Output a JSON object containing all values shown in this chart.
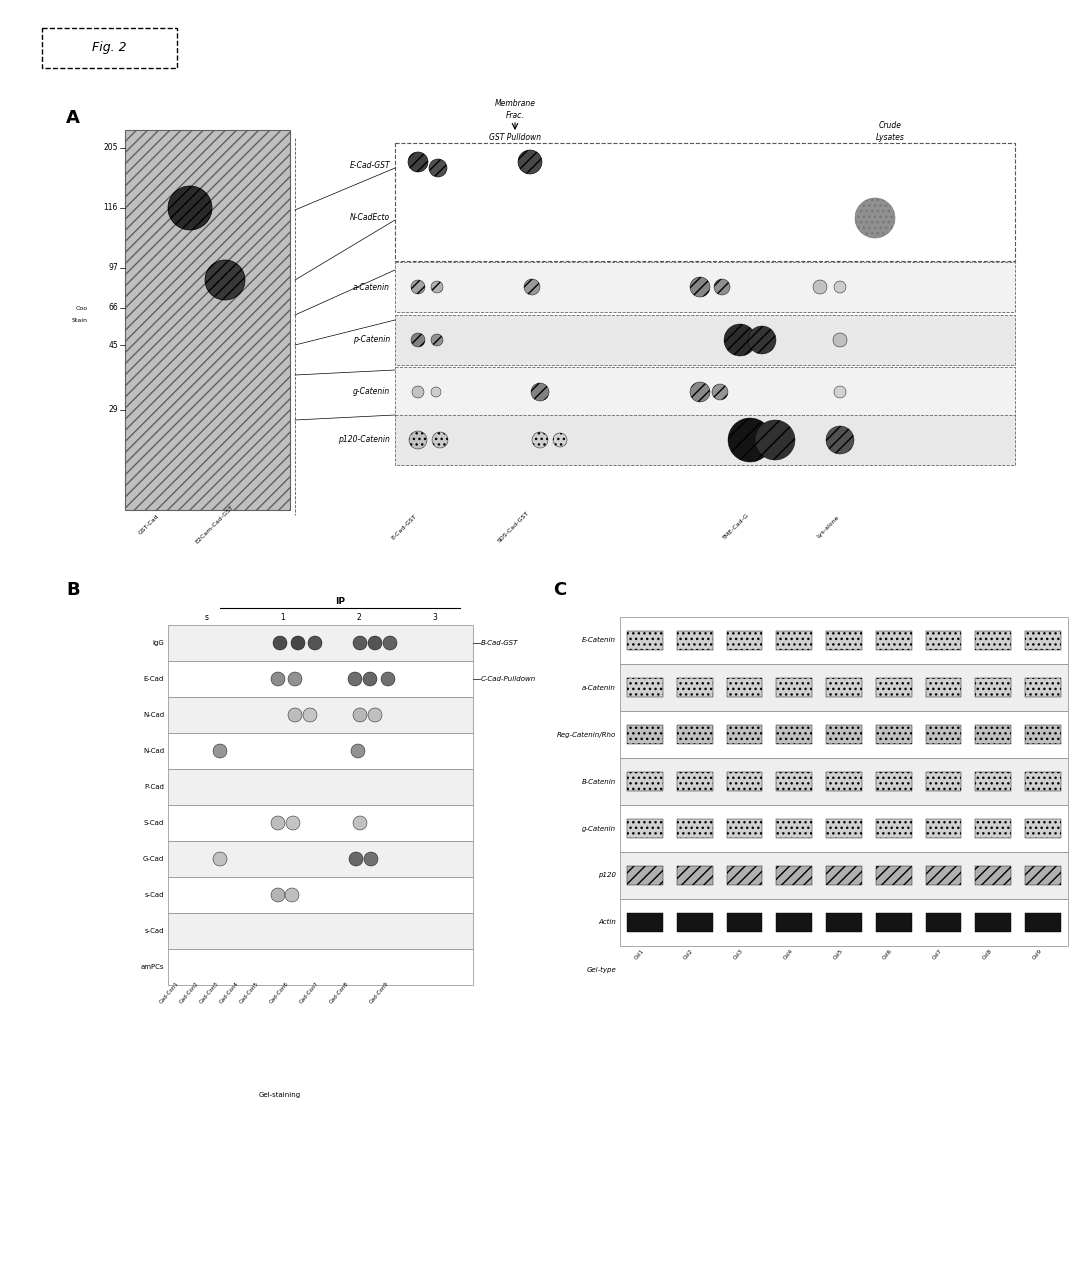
{
  "fig_label": "Fig. 2",
  "panel_A_label": "A",
  "panel_B_label": "B",
  "panel_C_label": "C",
  "background": "#ffffff",
  "gel_hatch": "///",
  "gel_fc": "#b0b0b0",
  "gel_ec": "#666666",
  "marker_labels": [
    "205",
    "116",
    "97",
    "66",
    "45",
    "29"
  ],
  "right_row_labels": [
    "E-Cad-GST",
    "N-CadEcto",
    "a-Catenin",
    "p-Catenin",
    "g-Catenin",
    "p120-Catenin"
  ],
  "right_col_labels": [
    "E-Cad-GST",
    "SDS-Cad-GST",
    "TME-Cad-G",
    "Lys-alone"
  ],
  "membrane_label1": "Membrane",
  "membrane_label2": "Frac.",
  "pulldown_label": "GST Pulldown",
  "crude_label1": "Crude",
  "crude_label2": "Lysates",
  "gel_xtick_labels": [
    "GST-Cad",
    "E2Cam-Cad-GST"
  ],
  "B_ip_label": "IP",
  "B_col_labels": [
    "s",
    "1",
    "2",
    "3"
  ],
  "B_row_labels": [
    "IgG",
    "E-Cad",
    "N-Cad",
    "N-Cad",
    "P-Cad",
    "S-Cad",
    "G-Cad",
    "s-Cad",
    "s-Cad",
    "amPCs"
  ],
  "B_annot1": "B-Cad-GST",
  "B_annot2": "C-Cad-Pulldown",
  "B_gel_stain_label": "Gel-staining",
  "C_row_labels": [
    "E-Catenin",
    "a-Catenin",
    "Reg-Catenin/Rho",
    "B-Catenin",
    "g-Catenin",
    "p120",
    "Actin",
    "Gel-type"
  ]
}
